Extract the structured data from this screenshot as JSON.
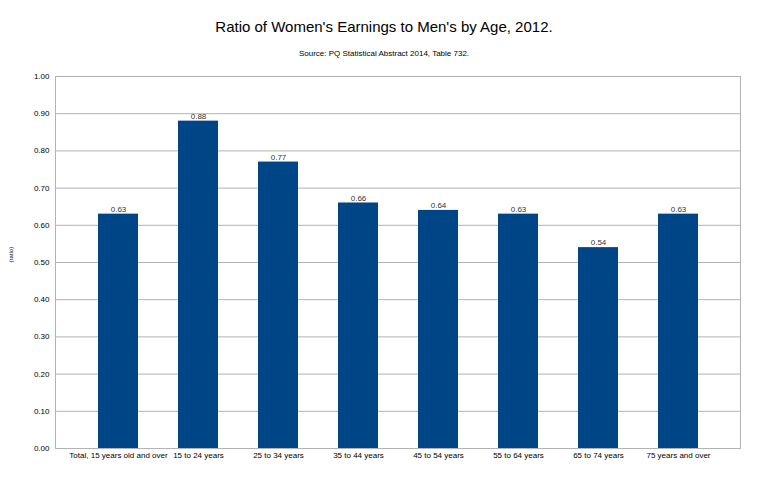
{
  "chart_data": {
    "type": "bar",
    "title": "Ratio of Women's Earnings to Men's by Age, 2012.",
    "subtitle": "Source: PQ Statistical Abstract 2014, Table 732.",
    "y_label": "(ratio)",
    "categories": [
      "Total, 15 years old and over",
      "15 to 24 years",
      "25 to 34 years",
      "35 to 44 years",
      "45 to 54 years",
      "55 to 64 years",
      "65 to 74 years",
      "75 years and over"
    ],
    "values": [
      0.63,
      0.88,
      0.77,
      0.66,
      0.64,
      0.63,
      0.54,
      0.63
    ],
    "color": "#004586",
    "ylim": [
      0,
      1
    ],
    "yticks": [
      {
        "value": 0,
        "label": "0.00"
      },
      {
        "value": 0.1,
        "label": "0.10"
      },
      {
        "value": 0.2,
        "label": "0.20"
      },
      {
        "value": 0.3,
        "label": "0.30"
      },
      {
        "value": 0.4,
        "label": "0.40"
      },
      {
        "value": 0.5,
        "label": "0.50"
      },
      {
        "value": 0.6,
        "label": "0.60"
      },
      {
        "value": 0.7,
        "label": "0.70"
      },
      {
        "value": 0.8,
        "label": "0.80"
      },
      {
        "value": 0.9,
        "label": "0.90"
      },
      {
        "value": 1,
        "label": "1.00"
      }
    ],
    "grid": true,
    "data_labels": true
  }
}
